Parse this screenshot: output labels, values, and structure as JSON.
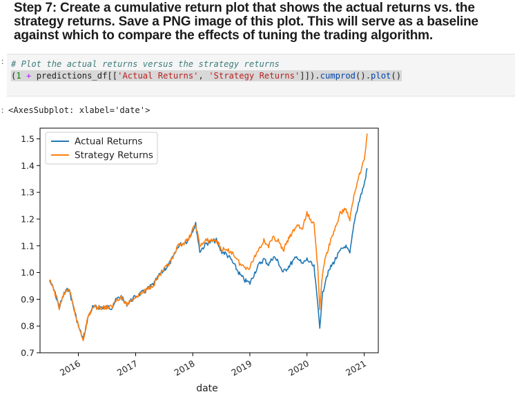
{
  "heading": {
    "line1": "Step 7: Create a cumulative return plot that shows the actual returns vs. the",
    "line2": "strategy returns. Save a PNG image of this plot. This will serve as a baseline",
    "line3": "against which to compare the effects of tuning the trading algorithm."
  },
  "code_cell": {
    "prompt": ":",
    "comment": "# Plot the actual returns versus the strategy returns",
    "tokens": {
      "open": "(",
      "one": "1",
      "plus": " + ",
      "df": "predictions_df[[",
      "col1": "'Actual Returns'",
      "comma": ", ",
      "col2": "'Strategy Returns'",
      "close": "]]).",
      "cumprod": "cumprod",
      "paren1": "().",
      "plot": "plot",
      "paren2": "()"
    }
  },
  "output": {
    "prompt": ":",
    "text": "<AxesSubplot: xlabel='date'>"
  },
  "chart_data": {
    "type": "line",
    "xlabel": "date",
    "ylabel": "",
    "xlim": [
      "2015-05-01",
      "2021-04-01"
    ],
    "ylim": [
      0.7,
      1.54
    ],
    "x_ticks": [
      "2016",
      "2017",
      "2018",
      "2019",
      "2020",
      "2021"
    ],
    "y_ticks": [
      "0.7",
      "0.8",
      "0.9",
      "1.0",
      "1.1",
      "1.2",
      "1.3",
      "1.4",
      "1.5"
    ],
    "legend_position": "upper-left",
    "grid": false,
    "series": [
      {
        "name": "Actual Returns",
        "color": "#1f77b4",
        "points": [
          [
            "2015-07-01",
            0.97
          ],
          [
            "2015-08-01",
            0.93
          ],
          [
            "2015-09-01",
            0.87
          ],
          [
            "2015-10-01",
            0.92
          ],
          [
            "2015-11-01",
            0.94
          ],
          [
            "2015-12-01",
            0.87
          ],
          [
            "2016-01-01",
            0.8
          ],
          [
            "2016-02-01",
            0.75
          ],
          [
            "2016-03-01",
            0.83
          ],
          [
            "2016-04-01",
            0.87
          ],
          [
            "2016-06-01",
            0.87
          ],
          [
            "2016-08-01",
            0.87
          ],
          [
            "2016-09-01",
            0.9
          ],
          [
            "2016-10-01",
            0.91
          ],
          [
            "2016-11-01",
            0.88
          ],
          [
            "2017-01-01",
            0.91
          ],
          [
            "2017-03-01",
            0.93
          ],
          [
            "2017-05-01",
            0.96
          ],
          [
            "2017-06-01",
            0.99
          ],
          [
            "2017-08-01",
            1.03
          ],
          [
            "2017-09-01",
            1.06
          ],
          [
            "2017-10-01",
            1.1
          ],
          [
            "2017-11-01",
            1.11
          ],
          [
            "2017-12-01",
            1.12
          ],
          [
            "2018-01-01",
            1.16
          ],
          [
            "2018-01-20",
            1.18
          ],
          [
            "2018-02-15",
            1.08
          ],
          [
            "2018-04-01",
            1.11
          ],
          [
            "2018-06-01",
            1.12
          ],
          [
            "2018-07-01",
            1.08
          ],
          [
            "2018-08-01",
            1.07
          ],
          [
            "2018-09-01",
            1.05
          ],
          [
            "2018-10-01",
            1.02
          ],
          [
            "2018-11-01",
            0.99
          ],
          [
            "2018-12-01",
            0.97
          ],
          [
            "2019-01-01",
            0.96
          ],
          [
            "2019-02-01",
            1.0
          ],
          [
            "2019-03-01",
            1.03
          ],
          [
            "2019-04-01",
            1.05
          ],
          [
            "2019-05-01",
            1.03
          ],
          [
            "2019-06-01",
            1.06
          ],
          [
            "2019-07-01",
            1.04
          ],
          [
            "2019-08-01",
            1.0
          ],
          [
            "2019-09-01",
            1.02
          ],
          [
            "2019-10-01",
            1.04
          ],
          [
            "2019-11-01",
            1.06
          ],
          [
            "2019-12-01",
            1.03
          ],
          [
            "2020-01-01",
            1.05
          ],
          [
            "2020-02-15",
            1.02
          ],
          [
            "2020-03-10",
            0.88
          ],
          [
            "2020-03-23",
            0.8
          ],
          [
            "2020-04-10",
            0.92
          ],
          [
            "2020-05-01",
            0.98
          ],
          [
            "2020-06-01",
            1.02
          ],
          [
            "2020-07-01",
            1.05
          ],
          [
            "2020-08-01",
            1.08
          ],
          [
            "2020-09-01",
            1.1
          ],
          [
            "2020-10-01",
            1.07
          ],
          [
            "2020-11-01",
            1.2
          ],
          [
            "2020-12-01",
            1.27
          ],
          [
            "2021-01-01",
            1.33
          ],
          [
            "2021-01-20",
            1.39
          ]
        ]
      },
      {
        "name": "Strategy Returns",
        "color": "#ff7f0e",
        "points": [
          [
            "2015-07-01",
            0.97
          ],
          [
            "2015-08-01",
            0.93
          ],
          [
            "2015-09-01",
            0.87
          ],
          [
            "2015-10-01",
            0.92
          ],
          [
            "2015-11-01",
            0.94
          ],
          [
            "2015-12-01",
            0.87
          ],
          [
            "2016-01-01",
            0.8
          ],
          [
            "2016-02-01",
            0.75
          ],
          [
            "2016-03-01",
            0.83
          ],
          [
            "2016-04-01",
            0.87
          ],
          [
            "2016-06-01",
            0.87
          ],
          [
            "2016-08-01",
            0.87
          ],
          [
            "2016-09-01",
            0.9
          ],
          [
            "2016-10-01",
            0.91
          ],
          [
            "2016-11-01",
            0.88
          ],
          [
            "2017-01-01",
            0.91
          ],
          [
            "2017-03-01",
            0.93
          ],
          [
            "2017-05-01",
            0.96
          ],
          [
            "2017-06-01",
            0.99
          ],
          [
            "2017-08-01",
            1.03
          ],
          [
            "2017-09-01",
            1.06
          ],
          [
            "2017-10-01",
            1.1
          ],
          [
            "2017-11-01",
            1.11
          ],
          [
            "2017-12-01",
            1.12
          ],
          [
            "2018-01-01",
            1.16
          ],
          [
            "2018-01-20",
            1.18
          ],
          [
            "2018-02-15",
            1.1
          ],
          [
            "2018-04-01",
            1.12
          ],
          [
            "2018-06-01",
            1.12
          ],
          [
            "2018-07-01",
            1.09
          ],
          [
            "2018-08-01",
            1.08
          ],
          [
            "2018-09-01",
            1.08
          ],
          [
            "2018-10-01",
            1.06
          ],
          [
            "2018-11-01",
            1.03
          ],
          [
            "2018-12-01",
            1.02
          ],
          [
            "2019-01-01",
            1.02
          ],
          [
            "2019-02-01",
            1.06
          ],
          [
            "2019-03-01",
            1.09
          ],
          [
            "2019-04-01",
            1.12
          ],
          [
            "2019-05-01",
            1.1
          ],
          [
            "2019-06-01",
            1.13
          ],
          [
            "2019-07-01",
            1.12
          ],
          [
            "2019-08-01",
            1.08
          ],
          [
            "2019-09-01",
            1.12
          ],
          [
            "2019-10-01",
            1.15
          ],
          [
            "2019-11-01",
            1.18
          ],
          [
            "2019-12-01",
            1.16
          ],
          [
            "2020-01-01",
            1.22
          ],
          [
            "2020-02-15",
            1.18
          ],
          [
            "2020-03-10",
            1.02
          ],
          [
            "2020-03-23",
            0.87
          ],
          [
            "2020-04-10",
            1.0
          ],
          [
            "2020-05-01",
            1.06
          ],
          [
            "2020-06-01",
            1.12
          ],
          [
            "2020-07-01",
            1.17
          ],
          [
            "2020-08-01",
            1.22
          ],
          [
            "2020-09-01",
            1.24
          ],
          [
            "2020-10-01",
            1.2
          ],
          [
            "2020-11-01",
            1.3
          ],
          [
            "2020-12-01",
            1.37
          ],
          [
            "2021-01-01",
            1.42
          ],
          [
            "2021-01-20",
            1.52
          ]
        ]
      }
    ]
  }
}
